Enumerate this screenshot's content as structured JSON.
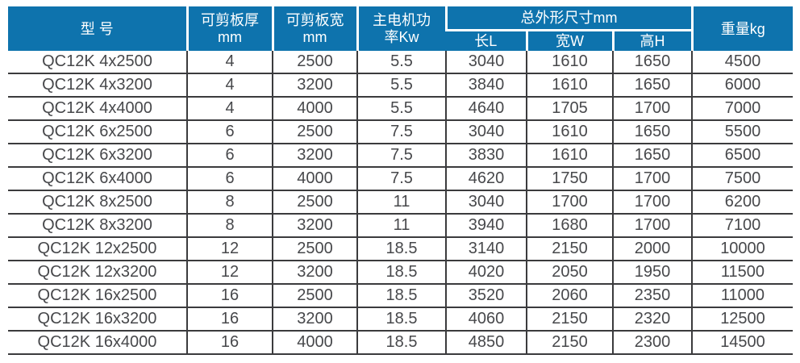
{
  "colors": {
    "header_bg": "#0E73AD",
    "header_text": "#FFFFFF",
    "body_text": "#47484B",
    "border": "#3B3B3D"
  },
  "table": {
    "header": {
      "model": "型 号",
      "cut_thickness_line1": "可剪板厚",
      "cut_thickness_line2": "mm",
      "cut_width_line1": "可剪板宽",
      "cut_width_line2": "mm",
      "motor_power_line1": "主电机功",
      "motor_power_line2": "率Kw",
      "overall_dims_group": "总外形尺寸mm",
      "dim_length": "长L",
      "dim_width": "宽W",
      "dim_height": "高H",
      "weight": "重量kg"
    },
    "rows": [
      [
        "QC12K 4x2500",
        "4",
        "2500",
        "5.5",
        "3040",
        "1610",
        "1650",
        "4500"
      ],
      [
        "QC12K 4x3200",
        "4",
        "3200",
        "5.5",
        "3840",
        "1610",
        "1650",
        "6000"
      ],
      [
        "QC12K 4x4000",
        "4",
        "4000",
        "5.5",
        "4640",
        "1705",
        "1700",
        "7000"
      ],
      [
        "QC12K 6x2500",
        "6",
        "2500",
        "7.5",
        "3040",
        "1610",
        "1650",
        "5500"
      ],
      [
        "QC12K 6x3200",
        "6",
        "3200",
        "7.5",
        "3830",
        "1610",
        "1650",
        "6500"
      ],
      [
        "QC12K 6x4000",
        "6",
        "4000",
        "7.5",
        "4620",
        "1750",
        "1700",
        "7500"
      ],
      [
        "QC12K 8x2500",
        "8",
        "2500",
        "11",
        "3040",
        "1700",
        "1700",
        "6200"
      ],
      [
        "QC12K 8x3200",
        "8",
        "3200",
        "11",
        "3940",
        "1680",
        "1700",
        "7100"
      ],
      [
        "QC12K 12x2500",
        "12",
        "2500",
        "18.5",
        "3140",
        "2150",
        "2000",
        "10000"
      ],
      [
        "QC12K 12x3200",
        "12",
        "3200",
        "18.5",
        "4020",
        "2050",
        "1950",
        "11500"
      ],
      [
        "QC12K 16x2500",
        "16",
        "2500",
        "18.5",
        "3520",
        "2060",
        "2350",
        "11000"
      ],
      [
        "QC12K 16x3200",
        "16",
        "3200",
        "18.5",
        "4060",
        "2150",
        "2320",
        "12500"
      ],
      [
        "QC12K 16x4000",
        "16",
        "4000",
        "18.5",
        "4850",
        "2150",
        "2300",
        "14500"
      ]
    ]
  }
}
